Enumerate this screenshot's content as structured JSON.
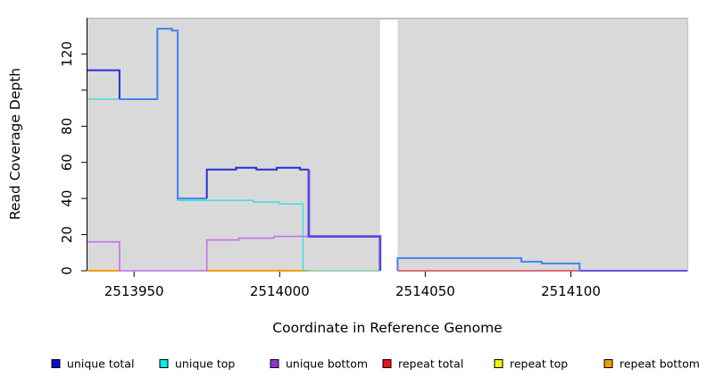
{
  "page": {
    "background": "#ffffff"
  },
  "chart_data": {
    "type": "line",
    "title": "",
    "xlabel": "Coordinate in Reference Genome",
    "ylabel": "Read Coverage Depth",
    "xlim": [
      2513934,
      2514140
    ],
    "ylim": [
      0,
      140
    ],
    "plot_bg": "#d9d9d9",
    "grid": "off",
    "legend_position": "bottom",
    "gap_x": [
      2514034.5,
      2514040.5
    ],
    "x_ticks": [
      {
        "value": 2513950,
        "label": "2513950"
      },
      {
        "value": 2514000,
        "label": "2514000"
      },
      {
        "value": 2514050,
        "label": "2514050"
      },
      {
        "value": 2514100,
        "label": "2514100"
      }
    ],
    "y_ticks": [
      {
        "value": 0,
        "label": "0"
      },
      {
        "value": 20,
        "label": "20"
      },
      {
        "value": 40,
        "label": "40"
      },
      {
        "value": 60,
        "label": "60"
      },
      {
        "value": 80,
        "label": "80"
      },
      {
        "value": 100,
        "label": ""
      },
      {
        "value": 120,
        "label": "120"
      }
    ],
    "legend": [
      {
        "label": "unique total",
        "color": "#0d0dcc"
      },
      {
        "label": "unique top",
        "color": "#00eeee"
      },
      {
        "label": "unique bottom",
        "color": "#9832cc"
      },
      {
        "label": "repeat total",
        "color": "#ee1111"
      },
      {
        "label": "repeat top",
        "color": "#f5f500"
      },
      {
        "label": "repeat bottom",
        "color": "#f59b00"
      }
    ],
    "series": [
      {
        "name": "unique total",
        "color": "#2c2cd8",
        "step_points": [
          [
            2513934,
            111
          ],
          [
            2513945,
            95
          ],
          [
            2513958,
            134
          ],
          [
            2513963,
            133
          ],
          [
            2513965,
            40
          ],
          [
            2513975,
            56
          ],
          [
            2513985,
            57
          ],
          [
            2513992,
            56
          ],
          [
            2513999,
            57
          ],
          [
            2514007,
            56
          ],
          [
            2514010,
            19
          ],
          [
            2514034.5,
            0
          ],
          [
            2514040.5,
            7
          ],
          [
            2514083,
            5
          ],
          [
            2514090,
            4
          ],
          [
            2514103,
            0
          ],
          [
            2514140,
            0
          ]
        ]
      },
      {
        "name": "unique top",
        "color": "#3fdede",
        "step_points": [
          [
            2513934,
            95
          ],
          [
            2513958,
            134
          ],
          [
            2513963,
            133
          ],
          [
            2513965,
            39
          ],
          [
            2513991,
            38
          ],
          [
            2514000,
            37
          ],
          [
            2514008,
            0
          ],
          [
            2514040.5,
            7
          ],
          [
            2514083,
            5
          ],
          [
            2514090,
            4
          ],
          [
            2514103,
            0
          ],
          [
            2514140,
            0
          ]
        ]
      },
      {
        "name": "unique bottom",
        "color": "#c472ea",
        "step_points": [
          [
            2513934,
            16
          ],
          [
            2513945,
            0
          ],
          [
            2513975,
            17
          ],
          [
            2513986,
            18
          ],
          [
            2513998,
            19
          ],
          [
            2514034.5,
            0
          ],
          [
            2514140,
            0
          ]
        ]
      },
      {
        "name": "repeat total",
        "color": "#e0485e",
        "step_points": [
          [
            2513934,
            0
          ],
          [
            2514140,
            0
          ]
        ]
      },
      {
        "name": "repeat top",
        "color": "#f5f500",
        "step_points": [
          [
            2513934,
            0
          ],
          [
            2514140,
            0
          ]
        ]
      },
      {
        "name": "repeat bottom",
        "color": "#ff9b00",
        "step_points": [
          [
            2513934,
            0
          ],
          [
            2514140,
            0
          ]
        ]
      }
    ],
    "display": [
      {
        "name": "zero-orange-left",
        "color": "#ff9b00",
        "w": 2,
        "pts": [
          [
            2513934,
            0
          ],
          [
            2513945,
            0
          ]
        ]
      },
      {
        "name": "zero-orange-mid",
        "color": "#ff9b00",
        "w": 2,
        "pts": [
          [
            2513975,
            0
          ],
          [
            2514010,
            0
          ]
        ]
      },
      {
        "name": "zero-red",
        "color": "#e0485e",
        "w": 1.6,
        "pts": [
          [
            2514040.5,
            0
          ],
          [
            2514103,
            0
          ]
        ]
      },
      {
        "name": "unique-top",
        "color": "#3fdede",
        "w": 1.5,
        "pts": [
          [
            2513934,
            95
          ],
          [
            2513958,
            95
          ],
          [
            2513958,
            134
          ],
          [
            2513963,
            133
          ],
          [
            2513965,
            39
          ],
          [
            2513991,
            38
          ],
          [
            2514000,
            37
          ],
          [
            2514008,
            0
          ]
        ]
      },
      {
        "name": "unique-bottom",
        "color": "#c472ea",
        "w": 1.6,
        "pts": [
          [
            2513934,
            16
          ],
          [
            2513945,
            0
          ],
          [
            2513975,
            17
          ],
          [
            2513986,
            18
          ],
          [
            2513998,
            19
          ],
          [
            2514010,
            19
          ]
        ]
      },
      {
        "name": "zero-green",
        "color": "#7cd2a2",
        "w": 1.6,
        "pts": [
          [
            2514008,
            0
          ],
          [
            2514034.5,
            0
          ]
        ]
      },
      {
        "name": "zero-violet",
        "color": "#6353e6",
        "w": 2,
        "pts": [
          [
            2514103,
            0
          ],
          [
            2514140,
            0
          ]
        ]
      },
      {
        "name": "total-dark-left",
        "color": "#2c2cd8",
        "w": 2,
        "pts": [
          [
            2513934,
            111
          ],
          [
            2513945,
            111
          ],
          [
            2513945,
            95
          ]
        ]
      },
      {
        "name": "total-bright-peak",
        "color": "#3f85f0",
        "w": 2,
        "pts": [
          [
            2513945,
            95
          ],
          [
            2513958,
            95
          ],
          [
            2513958,
            134
          ],
          [
            2513963,
            134
          ],
          [
            2513963,
            133
          ],
          [
            2513965,
            133
          ],
          [
            2513965,
            40
          ],
          [
            2513975,
            40
          ]
        ]
      },
      {
        "name": "total-dark-mid",
        "color": "#2c2cd8",
        "w": 2,
        "pts": [
          [
            2513975,
            40
          ],
          [
            2513975,
            56
          ],
          [
            2513985,
            56
          ],
          [
            2513985,
            57
          ],
          [
            2513992,
            57
          ],
          [
            2513992,
            56
          ],
          [
            2513999,
            56
          ],
          [
            2513999,
            57
          ],
          [
            2514007,
            57
          ],
          [
            2514007,
            56
          ],
          [
            2514010,
            56
          ]
        ]
      },
      {
        "name": "total-violet-19",
        "color": "#5a48e2",
        "w": 2.8,
        "pts": [
          [
            2514010,
            56
          ],
          [
            2514010,
            19
          ],
          [
            2514034.5,
            19
          ],
          [
            2514034.5,
            0
          ]
        ]
      },
      {
        "name": "total-bright-tail",
        "color": "#3f85f0",
        "w": 2,
        "pts": [
          [
            2514040.5,
            0
          ],
          [
            2514040.5,
            7
          ],
          [
            2514083,
            7
          ],
          [
            2514083,
            5
          ],
          [
            2514090,
            5
          ],
          [
            2514090,
            4
          ],
          [
            2514103,
            4
          ],
          [
            2514103,
            0
          ]
        ]
      }
    ]
  }
}
